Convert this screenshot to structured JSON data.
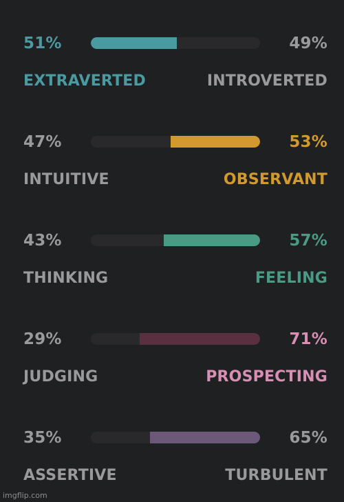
{
  "traits": [
    {
      "left_pct": "51%",
      "right_pct": "49%",
      "left_label": "EXTRAVERTED",
      "right_label": "INTROVERTED",
      "dominant": "left",
      "fill_fraction": 0.51,
      "color": "#4a9aa1"
    },
    {
      "left_pct": "47%",
      "right_pct": "53%",
      "left_label": "INTUITIVE",
      "right_label": "OBSERVANT",
      "dominant": "right",
      "fill_fraction": 0.53,
      "color": "#d29a2e"
    },
    {
      "left_pct": "43%",
      "right_pct": "57%",
      "left_label": "THINKING",
      "right_label": "FEELING",
      "dominant": "right",
      "fill_fraction": 0.57,
      "color": "#4b9a83"
    },
    {
      "left_pct": "29%",
      "right_pct": "71%",
      "left_label": "JUDGING",
      "right_label": "PROSPECTING",
      "dominant": "right",
      "fill_fraction": 0.71,
      "color": "#d78fb4",
      "bar_color": "#5a2f40"
    },
    {
      "left_pct": "35%",
      "right_pct": "65%",
      "left_label": "ASSERTIVE",
      "right_label": "TURBULENT",
      "dominant": "right",
      "fill_fraction": 0.65,
      "color": "#9a9a9d",
      "bar_color": "#6c5878"
    }
  ],
  "watermark": "imgflip.com"
}
